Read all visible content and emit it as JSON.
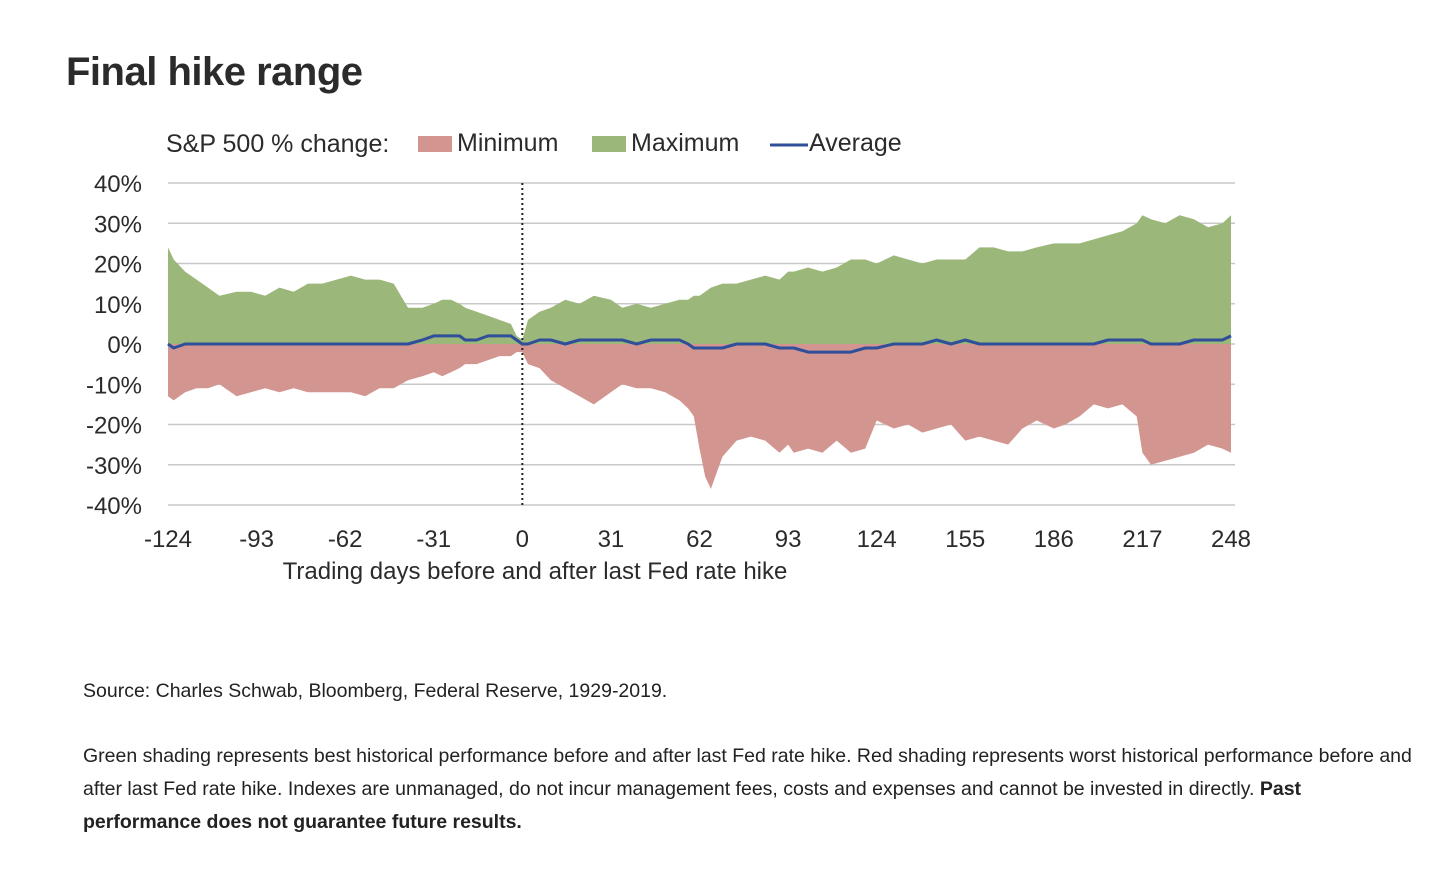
{
  "title": "Final hike range",
  "legend": {
    "prefix": "S&P 500 % change:",
    "minimum": "Minimum",
    "maximum": "Maximum",
    "average": "Average"
  },
  "source": "Source: Charles Schwab, Bloomberg, Federal Reserve, 1929-2019.",
  "disclaimer": {
    "text": "Green shading represents best historical performance before and after last Fed rate hike. Red shading represents worst historical performance before and after last Fed rate hike. Indexes are unmanaged, do not incur management fees, costs and expenses and cannot be invested in directly.",
    "bold": "Past performance does not guarantee future results."
  },
  "colors": {
    "maximum": "#9cb77a",
    "minimum": "#d39590",
    "average": "#2f4f9a",
    "grid": "#c8c8c8",
    "text": "#2b2b2b"
  },
  "chart_data": {
    "type": "area",
    "xlabel": "Trading days before and after last Fed rate hike",
    "ylabel": "",
    "xlim": [
      -124,
      248
    ],
    "ylim": [
      -40,
      40
    ],
    "x_ticks": [
      -124,
      -93,
      -62,
      -31,
      0,
      31,
      62,
      93,
      124,
      155,
      186,
      217,
      248
    ],
    "x_tick_labels": [
      "-124",
      "-93",
      "-62",
      "-31",
      "0",
      "31",
      "62",
      "93",
      "124",
      "155",
      "186",
      "217",
      "248"
    ],
    "y_ticks": [
      40,
      30,
      20,
      10,
      0,
      -10,
      -20,
      -30,
      -40
    ],
    "y_tick_labels": [
      "40%",
      "30%",
      "20%",
      "10%",
      "0%",
      "-10%",
      "-20%",
      "-30%",
      "-40%"
    ],
    "grid": "horizontal",
    "reference_line": {
      "x": 0,
      "style": "dotted"
    },
    "legend_position": "top",
    "x": [
      -124,
      -122,
      -118,
      -114,
      -110,
      -106,
      -100,
      -95,
      -90,
      -85,
      -80,
      -75,
      -70,
      -65,
      -60,
      -55,
      -50,
      -45,
      -40,
      -35,
      -31,
      -28,
      -25,
      -22,
      -20,
      -16,
      -12,
      -8,
      -4,
      -2,
      0,
      2,
      6,
      10,
      15,
      20,
      25,
      31,
      35,
      40,
      45,
      50,
      55,
      58,
      60,
      62,
      64,
      66,
      70,
      75,
      80,
      85,
      90,
      93,
      95,
      100,
      105,
      110,
      115,
      120,
      124,
      130,
      135,
      140,
      145,
      150,
      155,
      160,
      165,
      170,
      175,
      180,
      186,
      190,
      195,
      200,
      205,
      210,
      215,
      217,
      220,
      225,
      230,
      235,
      240,
      245,
      248
    ],
    "series": [
      {
        "name": "Maximum",
        "values": [
          24,
          21,
          18,
          16,
          14,
          12,
          13,
          13,
          12,
          14,
          13,
          15,
          15,
          16,
          17,
          16,
          16,
          15,
          9,
          9,
          10,
          11,
          11,
          10,
          9,
          8,
          7,
          6,
          5,
          2,
          1,
          6,
          8,
          9,
          11,
          10,
          12,
          11,
          9,
          10,
          9,
          10,
          11,
          11,
          12,
          12,
          13,
          14,
          15,
          15,
          16,
          17,
          16,
          18,
          18,
          19,
          18,
          19,
          21,
          21,
          20,
          22,
          21,
          20,
          21,
          21,
          21,
          24,
          24,
          23,
          23,
          24,
          25,
          25,
          25,
          26,
          27,
          28,
          30,
          32,
          31,
          30,
          32,
          31,
          29,
          30,
          32
        ]
      },
      {
        "name": "Minimum",
        "values": [
          -13,
          -14,
          -12,
          -11,
          -11,
          -10,
          -13,
          -12,
          -11,
          -12,
          -11,
          -12,
          -12,
          -12,
          -12,
          -13,
          -11,
          -11,
          -9,
          -8,
          -7,
          -8,
          -7,
          -6,
          -5,
          -5,
          -4,
          -3,
          -3,
          -2,
          -2,
          -5,
          -6,
          -9,
          -11,
          -13,
          -15,
          -12,
          -10,
          -11,
          -11,
          -12,
          -14,
          -16,
          -18,
          -26,
          -33,
          -36,
          -28,
          -24,
          -23,
          -24,
          -27,
          -25,
          -27,
          -26,
          -27,
          -24,
          -27,
          -26,
          -19,
          -21,
          -20,
          -22,
          -21,
          -20,
          -24,
          -23,
          -24,
          -25,
          -21,
          -19,
          -21,
          -20,
          -18,
          -15,
          -16,
          -15,
          -18,
          -27,
          -30,
          -29,
          -28,
          -27,
          -25,
          -26,
          -27
        ]
      },
      {
        "name": "Average",
        "values": [
          0,
          -1,
          0,
          0,
          0,
          0,
          0,
          0,
          0,
          0,
          0,
          0,
          0,
          0,
          0,
          0,
          0,
          0,
          0,
          1,
          2,
          2,
          2,
          2,
          1,
          1,
          2,
          2,
          2,
          1,
          0,
          0,
          1,
          1,
          0,
          1,
          1,
          1,
          1,
          0,
          1,
          1,
          1,
          0,
          -1,
          -1,
          -1,
          -1,
          -1,
          0,
          0,
          0,
          -1,
          -1,
          -1,
          -2,
          -2,
          -2,
          -2,
          -1,
          -1,
          0,
          0,
          0,
          1,
          0,
          1,
          0,
          0,
          0,
          0,
          0,
          0,
          0,
          0,
          0,
          1,
          1,
          1,
          1,
          0,
          0,
          0,
          1,
          1,
          1,
          2
        ]
      }
    ]
  }
}
